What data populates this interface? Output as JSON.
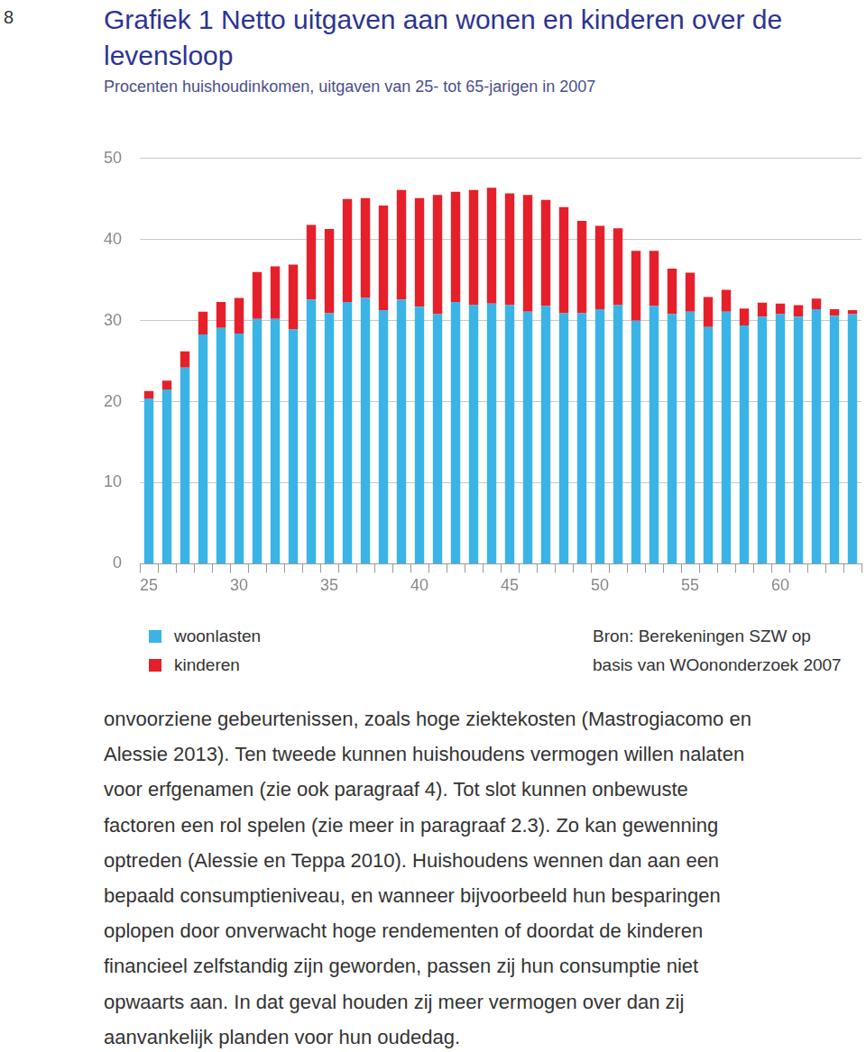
{
  "page_number": "8",
  "chart_data": {
    "type": "bar",
    "title": "Grafiek 1 Netto uitgaven aan wonen en kinderen over de levensloop",
    "subtitle": "Procenten huishoudinkomen, uitgaven van 25- tot 65-jarigen in 2007",
    "categories": [
      "25",
      null,
      null,
      null,
      null,
      "30",
      null,
      null,
      null,
      null,
      "35",
      null,
      null,
      null,
      null,
      "40",
      null,
      null,
      null,
      null,
      "45",
      null,
      null,
      null,
      null,
      "50",
      null,
      null,
      null,
      null,
      "55",
      null,
      null,
      null,
      null,
      "60",
      null,
      null,
      null,
      null
    ],
    "series": [
      {
        "name": "woonlasten",
        "color": "#3ab4e6",
        "values": [
          20.4,
          21.5,
          24.2,
          28.3,
          29.1,
          28.4,
          30.2,
          30.2,
          28.9,
          32.6,
          30.9,
          32.3,
          32.8,
          31.3,
          32.6,
          31.7,
          30.8,
          32.3,
          31.9,
          32.1,
          31.9,
          31.1,
          31.8,
          30.9,
          30.9,
          31.4,
          31.9,
          30.0,
          31.8,
          30.8,
          31.1,
          29.2,
          31.1,
          29.4,
          30.5,
          30.8,
          30.5,
          31.4,
          30.6,
          30.8
        ]
      },
      {
        "name": "kinderen",
        "color": "#e6202a",
        "values": [
          0.9,
          1.1,
          2.0,
          2.8,
          3.2,
          4.4,
          5.8,
          6.5,
          8.0,
          9.2,
          10.4,
          12.7,
          12.3,
          12.9,
          13.5,
          13.4,
          14.7,
          13.6,
          14.2,
          14.3,
          13.8,
          14.4,
          13.1,
          13.1,
          11.4,
          10.3,
          9.5,
          8.6,
          6.8,
          5.6,
          4.8,
          3.7,
          2.7,
          2.1,
          1.7,
          1.3,
          1.4,
          1.3,
          0.8,
          0.5
        ]
      }
    ],
    "stacked": true,
    "ylim": [
      0,
      50
    ],
    "yticks": [
      0,
      10,
      20,
      30,
      40,
      50
    ],
    "grid": true,
    "legend": "bottom left",
    "source": [
      "Bron: Berekeningen SZW op",
      "basis van WOononderzoek 2007"
    ]
  },
  "body_text": [
    "onvoorziene gebeurtenissen, zoals hoge ziektekosten (Mastrogiacomo en",
    "Alessie 2013). Ten tweede kunnen huishoudens vermogen willen nalaten",
    "voor erfgenamen (zie ook paragraaf 4). Tot slot kunnen onbewuste",
    "factoren een rol spelen (zie meer in paragraaf 2.3). Zo kan gewenning",
    "optreden (Alessie en Teppa 2010). Huishoudens wennen dan aan een",
    "bepaald consumptieniveau, en wanneer bijvoorbeeld hun besparingen",
    "oplopen door onverwacht hoge rendementen of doordat de kinderen",
    "financieel zelfstandig zijn geworden, passen zij hun consumptie niet",
    "opwaarts aan. In dat geval houden zij meer vermogen over dan zij",
    "aanvankelijk planden voor hun oudedag."
  ]
}
